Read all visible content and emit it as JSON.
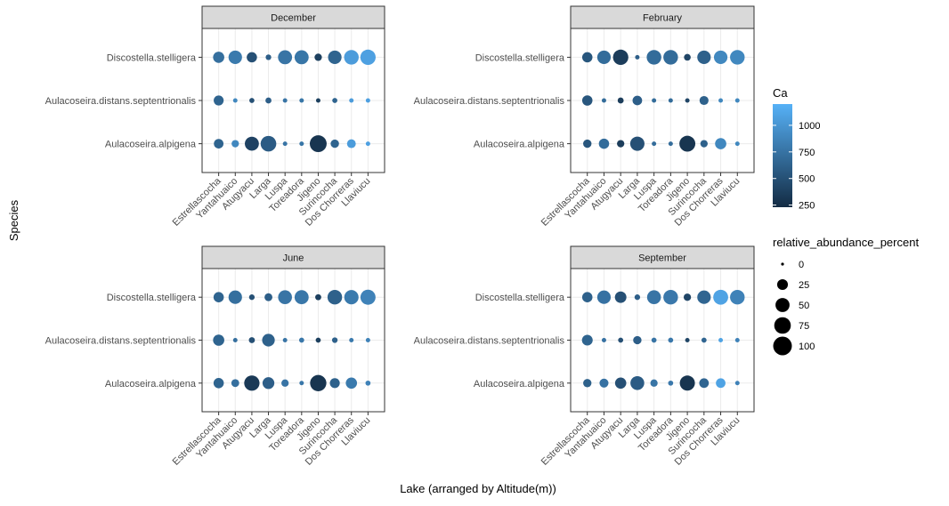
{
  "chart_data": {
    "type": "scatter",
    "xlabel": "Lake (arranged by Altitude(m))",
    "ylabel": "Species",
    "lakes": [
      "Estrellascocha",
      "Yantahuaico",
      "Atugyacu",
      "Larga",
      "Luspa",
      "Toreadora",
      "Jigeno",
      "Surincocha",
      "Dos Chorreras",
      "Llaviucu"
    ],
    "species": [
      "Discostella.stelligera",
      "Aulacoseira.distans.septentrionalis",
      "Aulacoseira.alpigena"
    ],
    "color_legend": {
      "title": "Ca",
      "ticks": [
        250,
        500,
        750,
        1000
      ],
      "range": [
        230,
        1200
      ],
      "low_color": "#132B43",
      "high_color": "#56B1F7"
    },
    "size_legend": {
      "title": "relative_abundance_percent",
      "values": [
        0,
        25,
        50,
        75,
        100
      ]
    },
    "panels": [
      {
        "title": "December",
        "points": {
          "Discostella.stelligera": [
            [
              28,
              720
            ],
            [
              45,
              800
            ],
            [
              22,
              500
            ],
            [
              3,
              600
            ],
            [
              50,
              760
            ],
            [
              50,
              770
            ],
            [
              8,
              380
            ],
            [
              45,
              640
            ],
            [
              55,
              1050
            ],
            [
              62,
              1080
            ]
          ],
          "Aulacoseira.distans.septentrionalis": [
            [
              20,
              640
            ],
            [
              1,
              900
            ],
            [
              2,
              500
            ],
            [
              4,
              600
            ],
            [
              1,
              760
            ],
            [
              1,
              770
            ],
            [
              1,
              380
            ],
            [
              2,
              640
            ],
            [
              1,
              1050
            ],
            [
              1,
              1080
            ]
          ],
          "Aulacoseira.alpigena": [
            [
              18,
              640
            ],
            [
              8,
              900
            ],
            [
              50,
              400
            ],
            [
              65,
              580
            ],
            [
              1,
              760
            ],
            [
              1,
              770
            ],
            [
              78,
              300
            ],
            [
              12,
              640
            ],
            [
              14,
              1050
            ],
            [
              1,
              1080
            ]
          ]
        }
      },
      {
        "title": "February",
        "points": {
          "Discostella.stelligera": [
            [
              22,
              540
            ],
            [
              45,
              700
            ],
            [
              62,
              360
            ],
            [
              1,
              600
            ],
            [
              55,
              700
            ],
            [
              55,
              700
            ],
            [
              6,
              420
            ],
            [
              45,
              620
            ],
            [
              45,
              900
            ],
            [
              55,
              900
            ]
          ],
          "Aulacoseira.distans.septentrionalis": [
            [
              22,
              540
            ],
            [
              1,
              700
            ],
            [
              4,
              360
            ],
            [
              18,
              600
            ],
            [
              1,
              700
            ],
            [
              1,
              700
            ],
            [
              1,
              420
            ],
            [
              15,
              620
            ],
            [
              1,
              900
            ],
            [
              1,
              900
            ]
          ],
          "Aulacoseira.alpigena": [
            [
              12,
              540
            ],
            [
              22,
              700
            ],
            [
              8,
              360
            ],
            [
              52,
              500
            ],
            [
              1,
              700
            ],
            [
              1,
              700
            ],
            [
              68,
              300
            ],
            [
              8,
              620
            ],
            [
              28,
              900
            ],
            [
              1,
              900
            ]
          ]
        }
      },
      {
        "title": "June",
        "points": {
          "Discostella.stelligera": [
            [
              22,
              640
            ],
            [
              45,
              720
            ],
            [
              3,
              500
            ],
            [
              10,
              600
            ],
            [
              48,
              760
            ],
            [
              50,
              780
            ],
            [
              4,
              380
            ],
            [
              55,
              620
            ],
            [
              52,
              800
            ],
            [
              60,
              860
            ]
          ],
          "Aulacoseira.distans.septentrionalis": [
            [
              28,
              640
            ],
            [
              1,
              720
            ],
            [
              4,
              500
            ],
            [
              38,
              620
            ],
            [
              1,
              760
            ],
            [
              2,
              780
            ],
            [
              2,
              380
            ],
            [
              3,
              620
            ],
            [
              1,
              800
            ],
            [
              1,
              860
            ]
          ],
          "Aulacoseira.alpigena": [
            [
              22,
              640
            ],
            [
              10,
              720
            ],
            [
              62,
              330
            ],
            [
              32,
              600
            ],
            [
              8,
              760
            ],
            [
              1,
              780
            ],
            [
              72,
              300
            ],
            [
              20,
              620
            ],
            [
              28,
              800
            ],
            [
              2,
              860
            ]
          ]
        }
      },
      {
        "title": "September",
        "points": {
          "Discostella.stelligera": [
            [
              22,
              620
            ],
            [
              45,
              740
            ],
            [
              30,
              500
            ],
            [
              3,
              600
            ],
            [
              48,
              760
            ],
            [
              55,
              790
            ],
            [
              8,
              420
            ],
            [
              45,
              650
            ],
            [
              58,
              1100
            ],
            [
              55,
              860
            ]
          ],
          "Aulacoseira.distans.septentrionalis": [
            [
              25,
              640
            ],
            [
              1,
              740
            ],
            [
              2,
              500
            ],
            [
              12,
              600
            ],
            [
              2,
              760
            ],
            [
              2,
              790
            ],
            [
              1,
              420
            ],
            [
              2,
              650
            ],
            [
              1,
              1100
            ],
            [
              1,
              860
            ]
          ],
          "Aulacoseira.alpigena": [
            [
              12,
              620
            ],
            [
              15,
              740
            ],
            [
              28,
              500
            ],
            [
              48,
              580
            ],
            [
              8,
              760
            ],
            [
              2,
              790
            ],
            [
              60,
              300
            ],
            [
              18,
              650
            ],
            [
              18,
              1100
            ],
            [
              1,
              860
            ]
          ]
        }
      }
    ]
  }
}
